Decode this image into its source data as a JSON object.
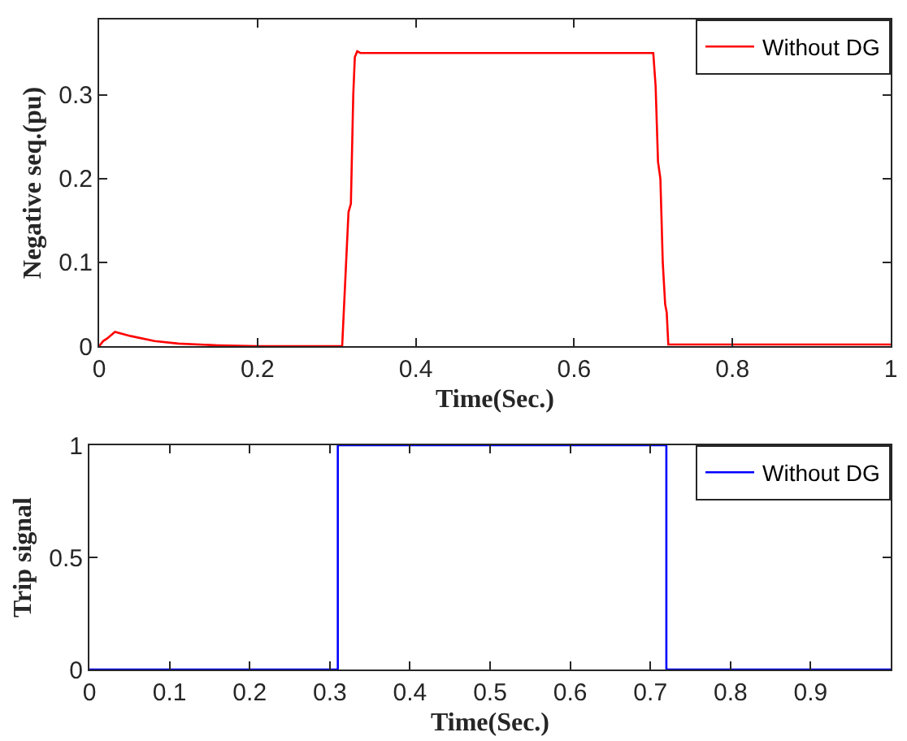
{
  "chart_data": [
    {
      "type": "line",
      "xlabel": "Time(Sec.)",
      "ylabel": "Negative seq.(pu)",
      "xlim": [
        0,
        1
      ],
      "xticks": [
        0,
        0.2,
        0.4,
        0.6,
        0.8,
        1
      ],
      "ylim": [
        0,
        0.39
      ],
      "yticks": [
        0,
        0.1,
        0.2,
        0.3
      ],
      "grid": false,
      "legend": "top right",
      "marker": "none",
      "line_style": "solid",
      "series": [
        {
          "name": "Without DG",
          "color": "#ff0000",
          "x": [
            0,
            0.005,
            0.01,
            0.02,
            0.04,
            0.07,
            0.1,
            0.15,
            0.2,
            0.307,
            0.312,
            0.315,
            0.318,
            0.321,
            0.323,
            0.326,
            0.33,
            0.5,
            0.7,
            0.703,
            0.706,
            0.709,
            0.712,
            0.715,
            0.717,
            0.719,
            0.8,
            1
          ],
          "values": [
            0,
            0.006,
            0.009,
            0.017,
            0.012,
            0.006,
            0.003,
            0.001,
            0,
            0,
            0.1,
            0.16,
            0.17,
            0.3,
            0.345,
            0.352,
            0.35,
            0.35,
            0.35,
            0.31,
            0.22,
            0.2,
            0.1,
            0.05,
            0.04,
            0.002,
            0.002,
            0.002
          ]
        }
      ]
    },
    {
      "type": "step",
      "xlabel": "Time(Sec.)",
      "ylabel": "Trip signal",
      "xlim": [
        0,
        1
      ],
      "xticks": [
        0,
        0.1,
        0.2,
        0.3,
        0.4,
        0.5,
        0.6,
        0.7,
        0.8,
        0.9
      ],
      "ylim": [
        0,
        1
      ],
      "yticks": [
        0,
        0.5,
        1
      ],
      "grid": false,
      "legend": "top right",
      "marker": "none",
      "line_style": "solid",
      "series": [
        {
          "name": "Without DG",
          "color": "#0000ff",
          "x": [
            0,
            0.31,
            0.72,
            1
          ],
          "values": [
            0,
            1,
            0,
            0
          ]
        }
      ]
    }
  ]
}
